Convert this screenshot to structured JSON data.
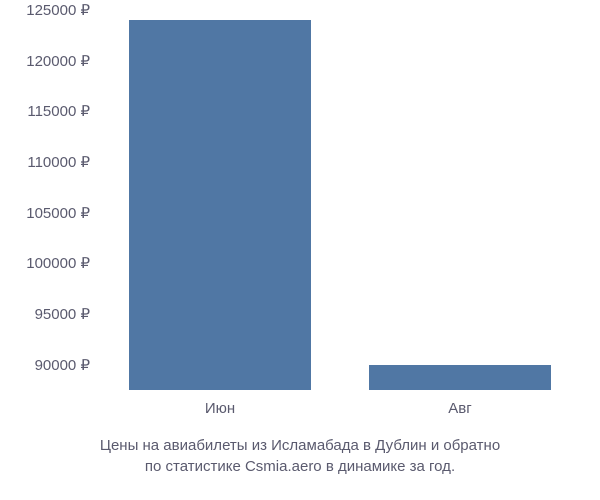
{
  "chart": {
    "type": "bar",
    "background_color": "#ffffff",
    "text_color": "#5a5a6e",
    "bar_color": "#5077a4",
    "font_size": 15,
    "y_axis": {
      "min": 87500,
      "max": 125000,
      "ticks": [
        {
          "value": 90000,
          "label": "90000 ₽"
        },
        {
          "value": 95000,
          "label": "95000 ₽"
        },
        {
          "value": 100000,
          "label": "100000 ₽"
        },
        {
          "value": 105000,
          "label": "105000 ₽"
        },
        {
          "value": 110000,
          "label": "110000 ₽"
        },
        {
          "value": 115000,
          "label": "115000 ₽"
        },
        {
          "value": 120000,
          "label": "120000 ₽"
        },
        {
          "value": 125000,
          "label": "125000 ₽"
        }
      ]
    },
    "x_axis": {
      "categories": [
        "Июн",
        "Авг"
      ]
    },
    "bars": [
      {
        "category": "Июн",
        "value": 124000,
        "x_center_pct": 25,
        "width_pct": 38
      },
      {
        "category": "Авг",
        "value": 90000,
        "x_center_pct": 75,
        "width_pct": 38
      }
    ],
    "caption": {
      "line1": "Цены на авиабилеты из Исламабада в Дублин и обратно",
      "line2": "по статистике Csmia.aero в динамике за год."
    }
  }
}
